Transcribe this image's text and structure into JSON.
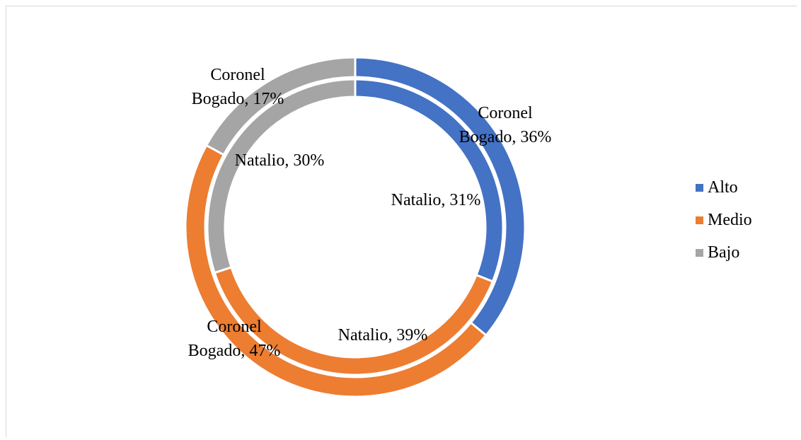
{
  "chart_data": {
    "type": "pie",
    "variant": "doughnut",
    "categories": [
      "Alto",
      "Medio",
      "Bajo"
    ],
    "colors": [
      "#4472C4",
      "#ED7D31",
      "#A5A5A5"
    ],
    "series": [
      {
        "name": "Natalio",
        "values": [
          31,
          39,
          30
        ],
        "labels": [
          "Natalio, 31%",
          "Natalio, 39%",
          "Natalio, 30%"
        ]
      },
      {
        "name": "Coronel Bogado",
        "values": [
          36,
          47,
          17
        ],
        "labels": [
          "Coronel\nBogado, 36%",
          "Coronel\nBogado, 47%",
          "Coronel\nBogado, 17%"
        ]
      }
    ],
    "legend": {
      "position": "right",
      "entries": [
        "Alto",
        "Medio",
        "Bajo"
      ]
    }
  }
}
